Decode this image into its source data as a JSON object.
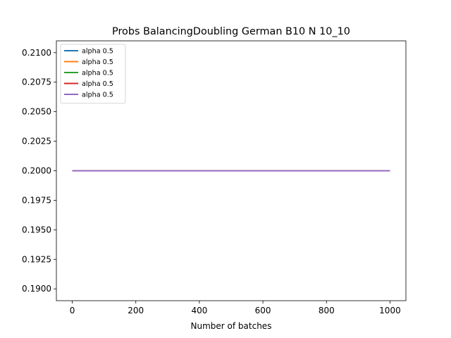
{
  "chart_data": {
    "type": "line",
    "title": "Probs BalancingDoubling German B10 N 10_10",
    "xlabel": "Number of batches",
    "ylabel": "",
    "xlim": [
      -50,
      1050
    ],
    "ylim": [
      0.189,
      0.211
    ],
    "xticks": [
      0,
      200,
      400,
      600,
      800,
      1000
    ],
    "yticks": [
      0.19,
      0.1925,
      0.195,
      0.1975,
      0.2,
      0.2025,
      0.205,
      0.2075,
      0.21
    ],
    "ytick_labels": [
      "0.1900",
      "0.1925",
      "0.1950",
      "0.1975",
      "0.2000",
      "0.2025",
      "0.2050",
      "0.2075",
      "0.2100"
    ],
    "grid": false,
    "legend_position": "top-left",
    "series": [
      {
        "name": "alpha 0.5",
        "color": "#1f77b4",
        "x": [
          0,
          1000
        ],
        "y": [
          0.2,
          0.2
        ]
      },
      {
        "name": "alpha 0.5",
        "color": "#ff7f0e",
        "x": [
          0,
          1000
        ],
        "y": [
          0.2,
          0.2
        ]
      },
      {
        "name": "alpha 0.5",
        "color": "#2ca02c",
        "x": [
          0,
          1000
        ],
        "y": [
          0.2,
          0.2
        ]
      },
      {
        "name": "alpha 0.5",
        "color": "#d62728",
        "x": [
          0,
          1000
        ],
        "y": [
          0.2,
          0.2
        ]
      },
      {
        "name": "alpha 0.5",
        "color": "#9467bd",
        "x": [
          0,
          1000
        ],
        "y": [
          0.2,
          0.2
        ]
      }
    ]
  }
}
